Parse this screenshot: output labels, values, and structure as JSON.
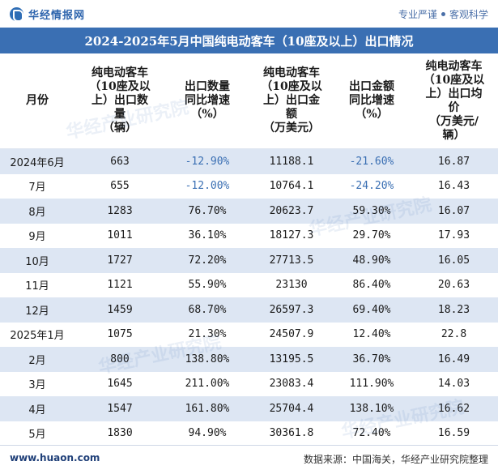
{
  "header": {
    "logo_text": "华经情报网",
    "slogan_left": "专业严谨",
    "slogan_right": "客观科学"
  },
  "title": "2024-2025年5月中国纯电动客车（10座及以上）出口情况",
  "columns": [
    "月份",
    "纯电动客车\n（10座及以\n上）出口数\n量\n（辆）",
    "出口数量\n同比增速\n（%）",
    "纯电动客车\n（10座及以\n上）出口金\n额\n（万美元）",
    "出口金额\n同比增速\n（%）",
    "纯电动客车\n（10座及以\n上）出口均\n价\n（万美元/\n辆）"
  ],
  "rows": [
    {
      "month": "2024年6月",
      "qty": "663",
      "qty_yoy": "-12.90%",
      "amount": "11188.1",
      "amount_yoy": "-21.60%",
      "price": "16.87"
    },
    {
      "month": "7月",
      "qty": "655",
      "qty_yoy": "-12.00%",
      "amount": "10764.1",
      "amount_yoy": "-24.20%",
      "price": "16.43"
    },
    {
      "month": "8月",
      "qty": "1283",
      "qty_yoy": "76.70%",
      "amount": "20623.7",
      "amount_yoy": "59.30%",
      "price": "16.07"
    },
    {
      "month": "9月",
      "qty": "1011",
      "qty_yoy": "36.10%",
      "amount": "18127.3",
      "amount_yoy": "29.70%",
      "price": "17.93"
    },
    {
      "month": "10月",
      "qty": "1727",
      "qty_yoy": "72.20%",
      "amount": "27713.5",
      "amount_yoy": "48.90%",
      "price": "16.05"
    },
    {
      "month": "11月",
      "qty": "1121",
      "qty_yoy": "55.90%",
      "amount": "23130",
      "amount_yoy": "86.40%",
      "price": "20.63"
    },
    {
      "month": "12月",
      "qty": "1459",
      "qty_yoy": "68.70%",
      "amount": "26597.3",
      "amount_yoy": "69.40%",
      "price": "18.23"
    },
    {
      "month": "2025年1月",
      "qty": "1075",
      "qty_yoy": "21.30%",
      "amount": "24507.9",
      "amount_yoy": "12.40%",
      "price": "22.8"
    },
    {
      "month": "2月",
      "qty": "800",
      "qty_yoy": "138.80%",
      "amount": "13195.5",
      "amount_yoy": "36.70%",
      "price": "16.49"
    },
    {
      "month": "3月",
      "qty": "1645",
      "qty_yoy": "211.00%",
      "amount": "23083.4",
      "amount_yoy": "111.90%",
      "price": "14.03"
    },
    {
      "month": "4月",
      "qty": "1547",
      "qty_yoy": "161.80%",
      "amount": "25704.4",
      "amount_yoy": "138.10%",
      "price": "16.62"
    },
    {
      "month": "5月",
      "qty": "1830",
      "qty_yoy": "94.90%",
      "amount": "30361.8",
      "amount_yoy": "72.40%",
      "price": "16.59"
    }
  ],
  "footer": {
    "url": "www.huaon.com",
    "source": "数据来源：中国海关，华经产业研究院整理"
  },
  "watermark": "华经产业研究院",
  "colors": {
    "accent": "#3a6fb3",
    "row_stripe": "#dde6f3",
    "negative": "#3a6fb3"
  }
}
